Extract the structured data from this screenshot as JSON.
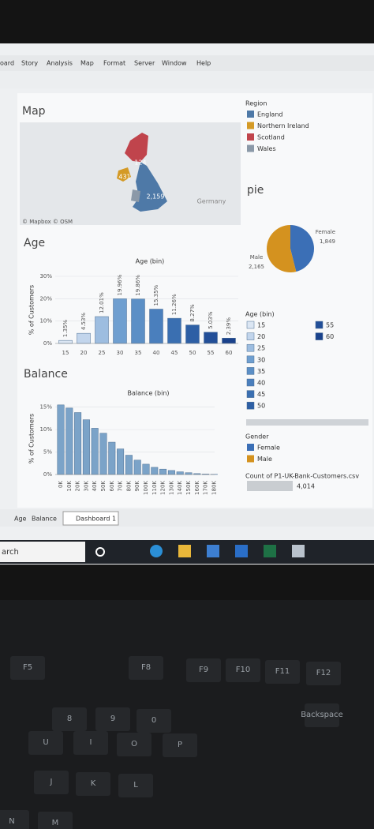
{
  "menu": [
    "oard",
    "Story",
    "Analysis",
    "Map",
    "Format",
    "Server",
    "Window",
    "Help"
  ],
  "map": {
    "title": "Map",
    "labels": [
      "124",
      "431",
      "2,159",
      "Germany"
    ],
    "credit": "© Mapbox © OSM"
  },
  "region_legend": {
    "title": "Region",
    "items": [
      {
        "name": "England",
        "color": "#4e79a7"
      },
      {
        "name": "Northern Ireland",
        "color": "#d49a26"
      },
      {
        "name": "Scotland",
        "color": "#c0444c"
      },
      {
        "name": "Wales",
        "color": "#8b99a8"
      }
    ]
  },
  "chart_data": [
    {
      "type": "bar",
      "title": "Age",
      "x_label": "Age (bin)",
      "y_label": "% of Customers",
      "categories": [
        "15",
        "20",
        "25",
        "30",
        "35",
        "40",
        "45",
        "50",
        "55",
        "60"
      ],
      "values": [
        1.35,
        4.53,
        12.01,
        19.96,
        19.86,
        15.35,
        11.26,
        8.27,
        5.03,
        2.39
      ],
      "value_labels": [
        "1.35%",
        "4.53%",
        "12.01%",
        "19.96%",
        "19.86%",
        "15.35%",
        "11.26%",
        "8.27%",
        "5.03%",
        "2.39%"
      ],
      "colors": [
        "#dbe6f3",
        "#c2d5ec",
        "#9dbde0",
        "#6f9fd0",
        "#5b8fc6",
        "#4a7fbd",
        "#3a6fb1",
        "#2d5fa5",
        "#224f98",
        "#1a428c"
      ],
      "ylim": [
        0,
        30
      ],
      "yticks": [
        {
          "value": 0,
          "label": "0%"
        },
        {
          "value": 10,
          "label": "10%"
        },
        {
          "value": 20,
          "label": "20%"
        },
        {
          "value": 30,
          "label": "30%"
        }
      ],
      "grid": true
    },
    {
      "type": "bar",
      "title": "Balance",
      "x_label": "Balance (bin)",
      "y_label": "% of Customers",
      "categories": [
        "0K",
        "10K",
        "20K",
        "30K",
        "40K",
        "50K",
        "60K",
        "70K",
        "80K",
        "90K",
        "100K",
        "110K",
        "120K",
        "130K",
        "140K",
        "150K",
        "160K",
        "170K",
        "180K"
      ],
      "values": [
        15.5,
        14.8,
        13.8,
        12.2,
        10.3,
        9.2,
        7.2,
        5.7,
        4.3,
        3.2,
        2.3,
        1.6,
        1.2,
        0.9,
        0.6,
        0.4,
        0.2,
        0.1,
        0.05
      ],
      "color": "#7ba3c8",
      "ylim": [
        0,
        16
      ],
      "yticks": [
        {
          "value": 0,
          "label": "0%"
        },
        {
          "value": 5,
          "label": "5%"
        },
        {
          "value": 10,
          "label": "10%"
        },
        {
          "value": 15,
          "label": "15%"
        }
      ],
      "grid": true
    },
    {
      "type": "pie",
      "title": "pie",
      "legend_title": "Gender",
      "categories": [
        "Female",
        "Male"
      ],
      "values": [
        1849,
        2165
      ],
      "value_labels": [
        "1,849",
        "2,165"
      ],
      "colors": [
        "#3b6fb6",
        "#d4921f"
      ]
    }
  ],
  "count": {
    "label": "Count of P1-UK-Bank-Customers.csv",
    "value": "4,014"
  },
  "tabs": [
    "Age",
    "Balance",
    "Dashboard 1"
  ],
  "taskbar": {
    "search": "arch"
  },
  "keyboard": [
    "F5",
    "F8",
    "F9",
    "F10",
    "F11",
    "F12",
    "Backspace",
    "8",
    "9",
    "0",
    "U",
    "I",
    "O",
    "P",
    "J",
    "K",
    "L",
    "N",
    "M"
  ]
}
